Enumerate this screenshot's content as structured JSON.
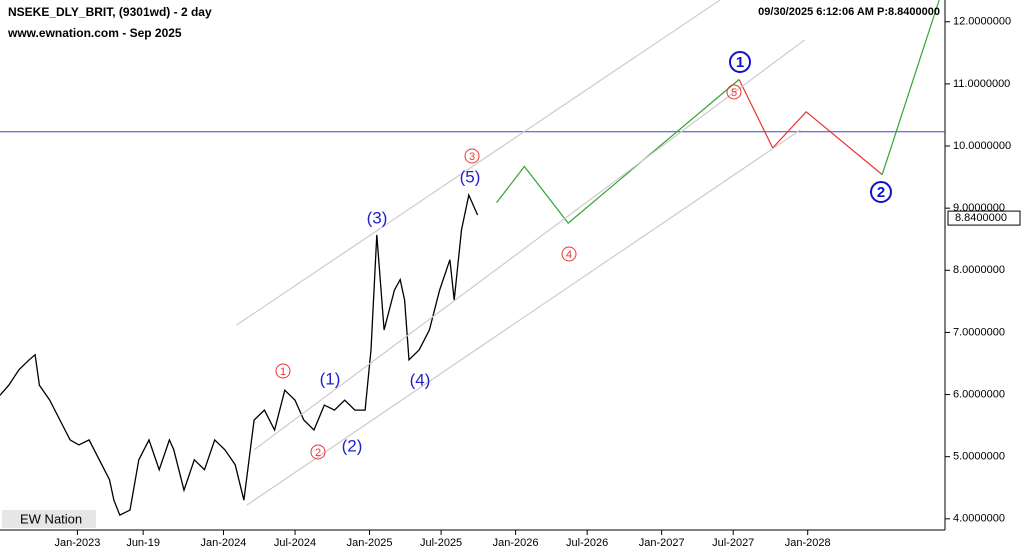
{
  "chart_data": {
    "type": "line",
    "title": "NSEKE_DLY_BRIT, (9301wd) - 2 day",
    "subtitle": "www.ewnation.com  - Sep 2025",
    "timestamp": "09/30/2025 6:12:06 AM  P:8.8400000",
    "logo": "EW Nation",
    "last_price": {
      "value": 8.84,
      "label": "8.8400000"
    },
    "xlim": [
      2022.47,
      2028.94
    ],
    "ylim": [
      3.82,
      12.35
    ],
    "xticks": [
      {
        "value": 2023.0,
        "label": "Jan-2023"
      },
      {
        "value": 2023.45,
        "label": "Jun-19"
      },
      {
        "value": 2024.0,
        "label": "Jan-2024"
      },
      {
        "value": 2024.49,
        "label": "Jul-2024"
      },
      {
        "value": 2025.0,
        "label": "Jan-2025"
      },
      {
        "value": 2025.49,
        "label": "Jul-2025"
      },
      {
        "value": 2026.0,
        "label": "Jan-2026"
      },
      {
        "value": 2026.49,
        "label": "Jul-2026"
      },
      {
        "value": 2027.0,
        "label": "Jan-2027"
      },
      {
        "value": 2027.49,
        "label": "Jul-2027"
      },
      {
        "value": 2028.0,
        "label": "Jan-2028"
      }
    ],
    "yticks": [
      {
        "value": 4,
        "label": "4.0000000"
      },
      {
        "value": 5,
        "label": "5.0000000"
      },
      {
        "value": 6,
        "label": "6.0000000"
      },
      {
        "value": 7,
        "label": "7.0000000"
      },
      {
        "value": 8,
        "label": "8.0000000"
      },
      {
        "value": 9,
        "label": "9.0000000"
      },
      {
        "value": 10,
        "label": "10.0000000"
      },
      {
        "value": 11,
        "label": "11.0000000"
      },
      {
        "value": 12,
        "label": "12.0000000"
      }
    ],
    "hline": {
      "value": 10.23,
      "color": "#3344dd"
    },
    "series": [
      {
        "color": "#000000",
        "x": [
          2022.47,
          2022.53,
          2022.6,
          2022.67,
          2022.71,
          2022.74,
          2022.81,
          2022.88,
          2022.95,
          2023.01,
          2023.08,
          2023.15,
          2023.22,
          2023.25,
          2023.29,
          2023.36,
          2023.42,
          2023.49,
          2023.56,
          2023.63,
          2023.66,
          2023.73,
          2023.8,
          2023.87,
          2023.94,
          2024.01,
          2024.08,
          2024.14,
          2024.21,
          2024.28,
          2024.35,
          2024.42,
          2024.49,
          2024.55,
          2024.62,
          2024.69,
          2024.76,
          2024.83,
          2024.9,
          2024.97,
          2025.01,
          2025.05,
          2025.1,
          2025.17,
          2025.21,
          2025.24,
          2025.27,
          2025.34,
          2025.41,
          2025.48,
          2025.55,
          2025.58,
          2025.63,
          2025.68,
          2025.74
        ],
        "values": [
          5.99,
          6.15,
          6.4,
          6.56,
          6.64,
          6.15,
          5.91,
          5.59,
          5.27,
          5.19,
          5.27,
          4.95,
          4.63,
          4.3,
          4.06,
          4.14,
          4.95,
          5.27,
          4.79,
          5.27,
          5.11,
          4.46,
          4.95,
          4.79,
          5.27,
          5.11,
          4.87,
          4.3,
          5.59,
          5.75,
          5.43,
          6.07,
          5.91,
          5.59,
          5.43,
          5.83,
          5.75,
          5.91,
          5.75,
          5.75,
          6.72,
          8.57,
          7.04,
          7.68,
          7.85,
          7.52,
          6.56,
          6.72,
          7.04,
          7.68,
          8.17,
          7.52,
          8.65,
          9.21,
          8.89
        ]
      },
      {
        "color": "#33a333",
        "x": [
          2025.87,
          2026.06,
          2026.36,
          2027.53
        ],
        "values": [
          9.09,
          9.67,
          8.76,
          11.07
        ]
      },
      {
        "color": "#ee3333",
        "x": [
          2027.53,
          2027.76,
          2027.99,
          2028.51
        ],
        "values": [
          11.07,
          9.97,
          10.55,
          9.54
        ]
      },
      {
        "color": "#33a333",
        "x": [
          2028.51,
          2028.9
        ],
        "values": [
          9.54,
          12.35
        ]
      },
      {
        "color": "#cccccc",
        "x": [
          2024.09,
          2027.4
        ],
        "values": [
          7.12,
          12.35
        ]
      },
      {
        "color": "#cccccc",
        "x": [
          2024.21,
          2027.98
        ],
        "values": [
          5.11,
          11.71
        ]
      },
      {
        "color": "#cccccc",
        "x": [
          2024.16,
          2027.95
        ],
        "values": [
          4.22,
          10.26
        ]
      }
    ],
    "wave_labels": [
      "(1)",
      "(2)",
      "(3)",
      "(4)",
      "(5)"
    ],
    "minor_labels": [
      "1",
      "2",
      "3",
      "4",
      "5"
    ],
    "major_labels": [
      "1",
      "2"
    ]
  }
}
